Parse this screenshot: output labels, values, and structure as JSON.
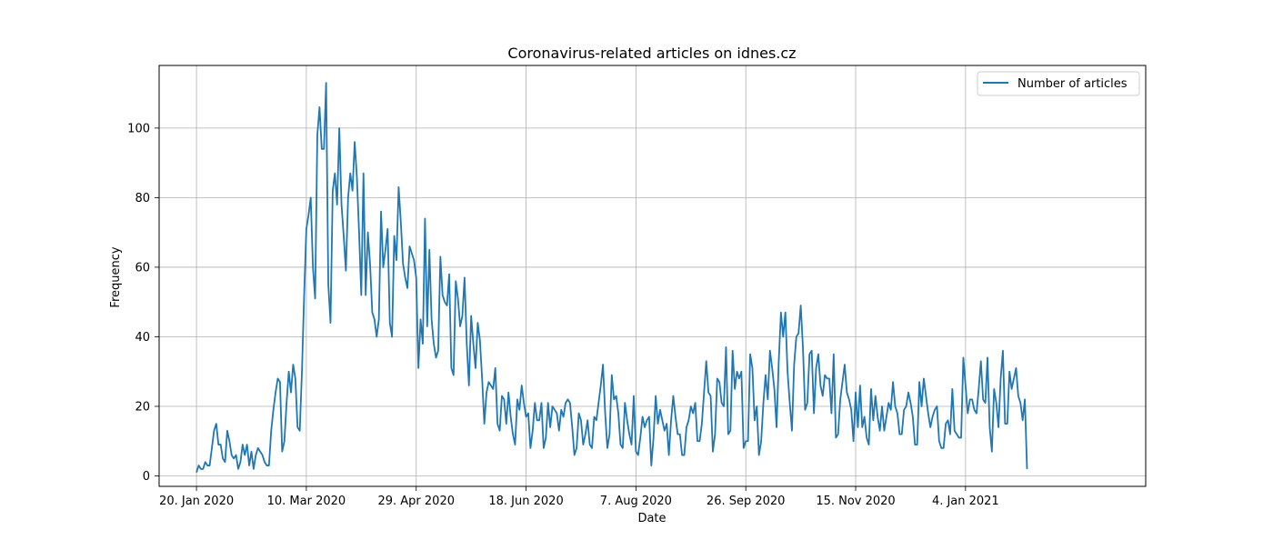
{
  "chart_data": {
    "type": "line",
    "title": "Coronavirus-related articles on idnes.cz",
    "xlabel": "Date",
    "ylabel": "Frequency",
    "grid": true,
    "legend_position": "top-right",
    "x_start": "2020-01-20",
    "x_end": "2021-02-23",
    "x_ticks": [
      {
        "date": "2020-01-20",
        "label": "20. Jan 2020"
      },
      {
        "date": "2020-03-10",
        "label": "10. Mar 2020"
      },
      {
        "date": "2020-04-29",
        "label": "29. Apr 2020"
      },
      {
        "date": "2020-06-18",
        "label": "18. Jun 2020"
      },
      {
        "date": "2020-08-07",
        "label": "7. Aug 2020"
      },
      {
        "date": "2020-09-26",
        "label": "26. Sep 2020"
      },
      {
        "date": "2020-11-15",
        "label": "15. Nov 2020"
      },
      {
        "date": "2021-01-04",
        "label": "4. Jan 2021"
      }
    ],
    "y_ticks": [
      0,
      20,
      40,
      60,
      80,
      100
    ],
    "ylim": [
      -3,
      118
    ],
    "xlim": [
      "2020-01-03",
      "2021-03-27"
    ],
    "series": [
      {
        "name": "Number of articles",
        "color": "#1f77b4",
        "values": [
          1,
          3,
          2,
          2,
          4,
          3,
          3,
          8,
          13,
          15,
          9,
          9,
          5,
          4,
          13,
          10,
          6,
          5,
          6,
          2,
          4,
          9,
          6,
          9,
          3,
          7,
          2,
          6,
          8,
          7,
          6,
          4,
          3,
          3,
          13,
          19,
          24,
          28,
          27,
          7,
          10,
          21,
          30,
          24,
          32,
          28,
          14,
          13,
          30,
          52,
          71,
          75,
          80,
          60,
          51,
          98,
          106,
          94,
          94,
          113,
          55,
          44,
          82,
          87,
          78,
          100,
          78,
          69,
          59,
          80,
          87,
          82,
          96,
          86,
          70,
          52,
          87,
          52,
          70,
          61,
          47,
          45,
          40,
          45,
          76,
          60,
          65,
          71,
          44,
          40,
          69,
          62,
          83,
          73,
          61,
          57,
          54,
          66,
          64,
          62,
          57,
          31,
          45,
          38,
          74,
          43,
          65,
          45,
          38,
          34,
          36,
          63,
          52,
          50,
          49,
          58,
          31,
          29,
          56,
          51,
          43,
          46,
          57,
          38,
          26,
          46,
          38,
          31,
          44,
          39,
          28,
          15,
          24,
          27,
          26,
          25,
          31,
          15,
          13,
          23,
          22,
          15,
          24,
          17,
          12,
          9,
          22,
          19,
          26,
          21,
          17,
          18,
          8,
          13,
          21,
          16,
          16,
          21,
          8,
          11,
          21,
          14,
          20,
          19,
          18,
          13,
          19,
          17,
          21,
          22,
          21,
          14,
          6,
          8,
          18,
          16,
          9,
          12,
          16,
          9,
          8,
          17,
          16,
          21,
          26,
          32,
          18,
          8,
          12,
          29,
          22,
          23,
          18,
          9,
          8,
          21,
          16,
          12,
          9,
          23,
          7,
          6,
          11,
          17,
          14,
          16,
          17,
          3,
          11,
          23,
          15,
          19,
          16,
          13,
          15,
          6,
          16,
          23,
          17,
          12,
          12,
          6,
          6,
          14,
          16,
          20,
          18,
          21,
          10,
          10,
          15,
          24,
          33,
          24,
          23,
          7,
          12,
          28,
          27,
          21,
          20,
          37,
          12,
          13,
          36,
          25,
          30,
          28,
          30,
          8,
          10,
          10,
          35,
          31,
          16,
          20,
          6,
          10,
          21,
          29,
          22,
          36,
          31,
          25,
          14,
          33,
          47,
          40,
          47,
          30,
          21,
          13,
          32,
          40,
          41,
          49,
          37,
          19,
          21,
          35,
          36,
          18,
          31,
          35,
          26,
          23,
          29,
          28,
          28,
          18,
          35,
          11,
          12,
          22,
          27,
          32,
          24,
          22,
          19,
          10,
          24,
          14,
          26,
          14,
          17,
          11,
          9,
          25,
          16,
          23,
          17,
          13,
          20,
          13,
          17,
          21,
          19,
          27,
          20,
          18,
          12,
          12,
          19,
          20,
          24,
          21,
          17,
          9,
          9,
          27,
          20,
          28,
          23,
          18,
          14,
          17,
          19,
          20,
          10,
          8,
          8,
          15,
          16,
          12,
          25,
          13,
          12,
          11,
          11,
          34,
          26,
          18,
          22,
          22,
          19,
          18,
          25,
          33,
          22,
          21,
          34,
          14,
          7,
          25,
          21,
          14,
          28,
          36,
          15,
          15,
          30,
          25,
          28,
          31,
          23,
          21,
          16,
          22,
          2
        ]
      }
    ]
  }
}
